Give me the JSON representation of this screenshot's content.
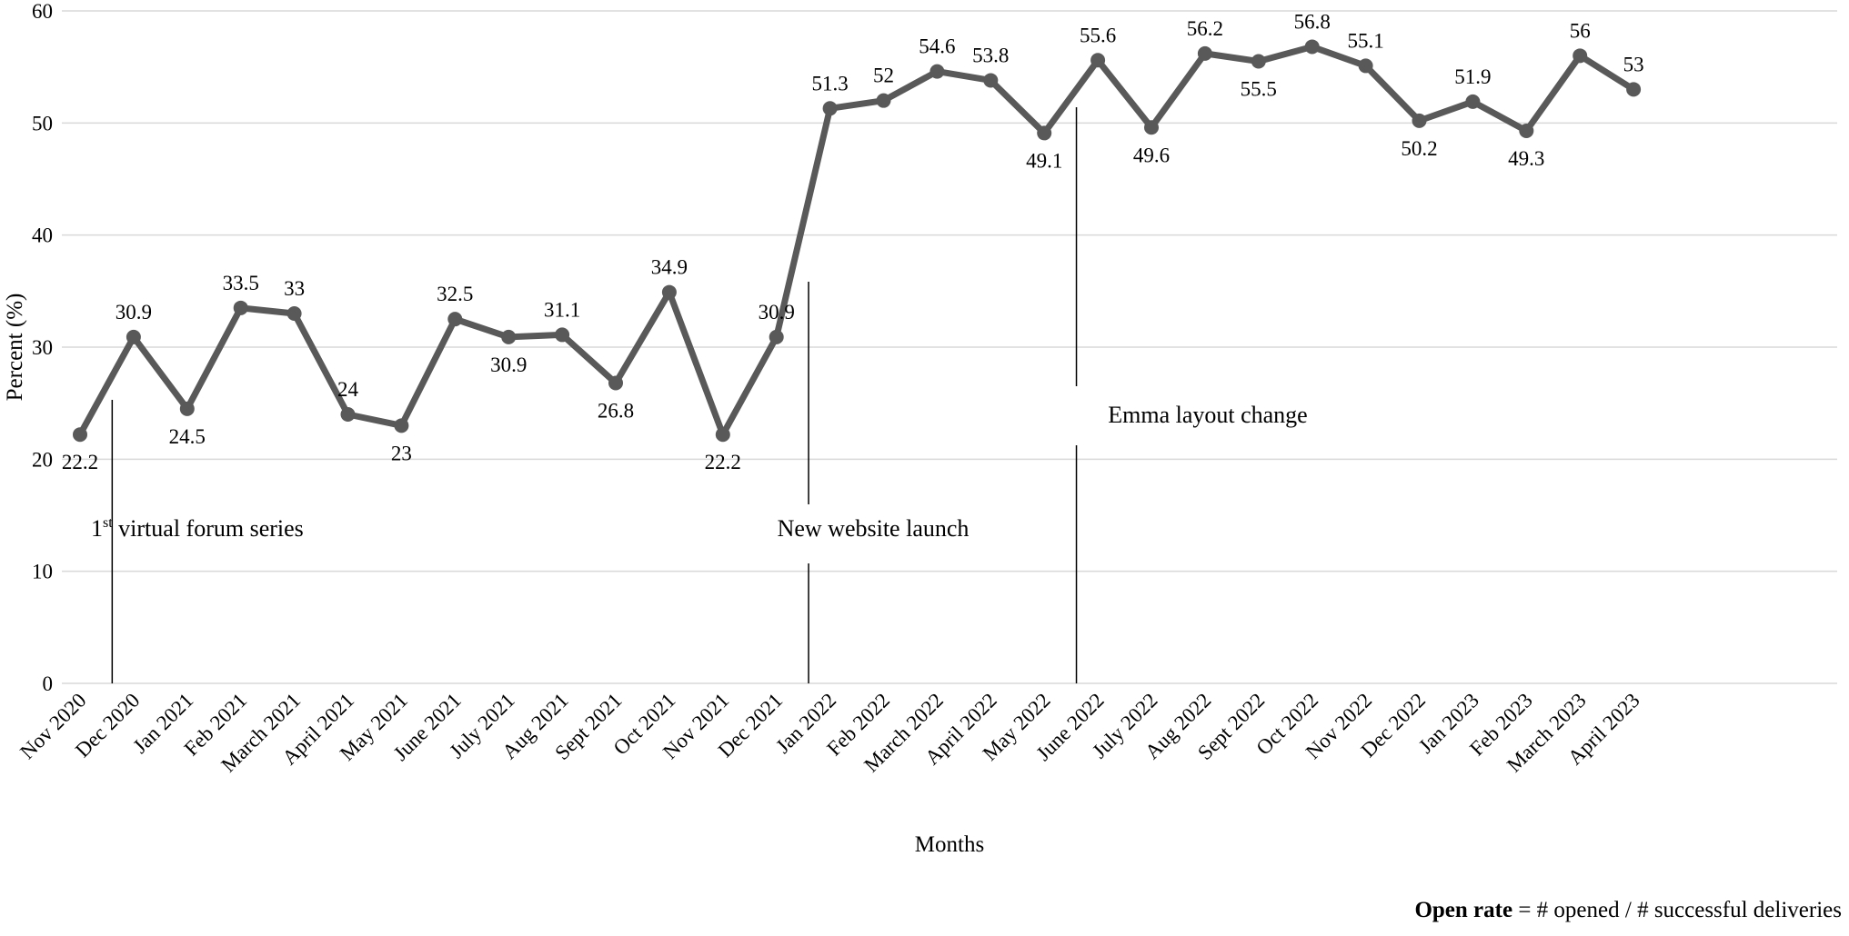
{
  "chart_data": {
    "type": "line",
    "title": "",
    "xlabel": "Months",
    "ylabel": "Percent (%)",
    "ylim": [
      0,
      60
    ],
    "yticks": [
      0,
      10,
      20,
      30,
      40,
      50,
      60
    ],
    "grid": true,
    "categories": [
      "Nov 2020",
      "Dec 2020",
      "Jan 2021",
      "Feb 2021",
      "March 2021",
      "April 2021",
      "May 2021",
      "June 2021",
      "July 2021",
      "Aug 2021",
      "Sept 2021",
      "Oct 2021",
      "Nov 2021",
      "Dec 2021",
      "Jan 2022",
      "Feb 2022",
      "March 2022",
      "April 2022",
      "May 2022",
      "June 2022",
      "July 2022",
      "Aug 2022",
      "Sept 2022",
      "Oct 2022",
      "Nov 2022",
      "Dec 2022",
      "Jan 2023",
      "Feb 2023",
      "March 2023",
      "April 2023"
    ],
    "series": [
      {
        "name": "",
        "color": "#595959",
        "values": [
          22.2,
          30.9,
          24.5,
          33.5,
          33,
          24,
          23,
          32.5,
          30.9,
          31.1,
          26.8,
          34.9,
          22.2,
          30.9,
          51.3,
          52,
          54.6,
          53.8,
          49.1,
          55.6,
          49.6,
          56.2,
          55.5,
          56.8,
          55.1,
          50.2,
          51.9,
          49.3,
          56,
          53
        ]
      }
    ],
    "annotations": [
      {
        "sup_prefix": "1",
        "sup": "st",
        "text": " virtual forum series",
        "after_category": "Nov 2020"
      },
      {
        "text": "New website launch",
        "after_category": "Dec 2021"
      },
      {
        "text": "Emma layout change",
        "after_category": "May 2022"
      }
    ]
  },
  "note": {
    "bold": "Open rate",
    "rest": " = # opened / # successful deliveries"
  }
}
